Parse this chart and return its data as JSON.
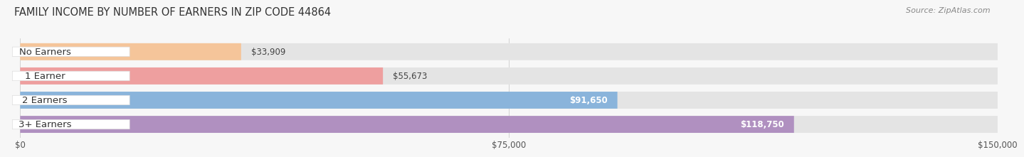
{
  "title": "FAMILY INCOME BY NUMBER OF EARNERS IN ZIP CODE 44864",
  "source": "Source: ZipAtlas.com",
  "categories": [
    "No Earners",
    "1 Earner",
    "2 Earners",
    "3+ Earners"
  ],
  "values": [
    33909,
    55673,
    91650,
    118750
  ],
  "bar_colors": [
    "#f5c59a",
    "#ee9f9f",
    "#8ab4db",
    "#b090c0"
  ],
  "label_colors": [
    "#333333",
    "#333333",
    "#333333",
    "#333333"
  ],
  "value_colors": [
    "#333333",
    "#333333",
    "#ffffff",
    "#ffffff"
  ],
  "xmax": 150000,
  "xtick_labels": [
    "$0",
    "$75,000",
    "$150,000"
  ],
  "bar_height": 0.7,
  "background_color": "#f7f7f7",
  "bar_bg_color": "#e4e4e4",
  "title_fontsize": 10.5,
  "source_fontsize": 8,
  "label_fontsize": 9.5,
  "value_fontsize": 8.5
}
